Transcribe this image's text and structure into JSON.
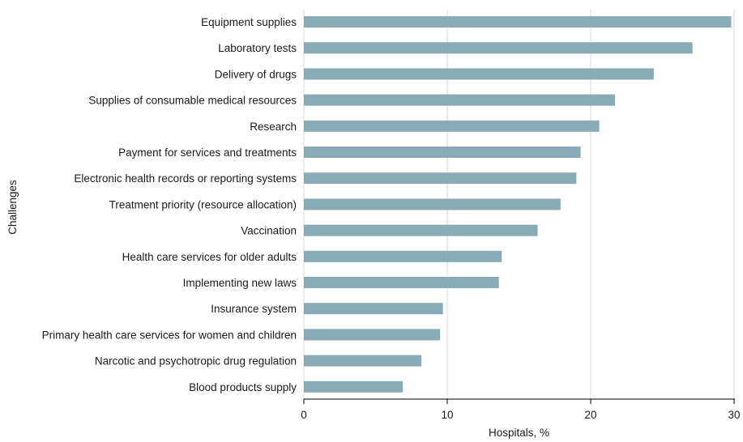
{
  "chart_data": {
    "type": "bar",
    "orientation": "horizontal",
    "title": "",
    "xlabel": "Hospitals, %",
    "ylabel": "Challenges",
    "xlim": [
      0,
      30
    ],
    "xticks": [
      0,
      10,
      20,
      30
    ],
    "grid": true,
    "bar_color": "#89aab7",
    "categories": [
      "Equipment supplies",
      "Laboratory tests",
      "Delivery of drugs",
      "Supplies of consumable medical resources",
      "Research",
      "Payment for services and treatments",
      "Electronic health records or reporting systems",
      "Treatment priority (resource allocation)",
      "Vaccination",
      "Health care services for older adults",
      "Implementing new laws",
      "Insurance system",
      "Primary health care services for women and children",
      "Narcotic and psychotropic drug regulation",
      "Blood products supply"
    ],
    "values": [
      29.8,
      27.1,
      24.4,
      21.7,
      20.6,
      19.3,
      19.0,
      17.9,
      16.3,
      13.8,
      13.6,
      9.7,
      9.5,
      8.2,
      6.9
    ]
  }
}
